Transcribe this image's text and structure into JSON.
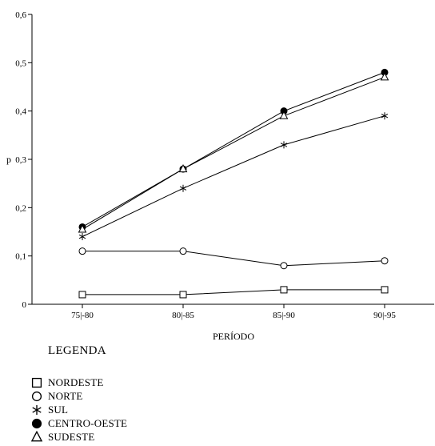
{
  "chart_data": {
    "type": "line",
    "categories": [
      "75|-80",
      "80|-85",
      "85|-90",
      "90|-95"
    ],
    "ylim": [
      0,
      0.6
    ],
    "yticks": [
      0,
      0.1,
      0.2,
      0.3,
      0.4,
      0.5,
      0.6
    ],
    "ytick_labels": [
      "0",
      "0,1",
      "0,2",
      "0,3",
      "0,4",
      "0,5",
      "0,6"
    ],
    "xlabel": "PERÍODO",
    "ylabel": "p",
    "grid": false,
    "series": [
      {
        "name": "NORDESTE",
        "marker": "square-open",
        "values": [
          0.02,
          0.02,
          0.03,
          0.03
        ]
      },
      {
        "name": "NORTE",
        "marker": "circle-open",
        "values": [
          0.11,
          0.11,
          0.08,
          0.09
        ]
      },
      {
        "name": "SUL",
        "marker": "asterisk",
        "values": [
          0.14,
          0.24,
          0.33,
          0.39
        ]
      },
      {
        "name": "CENTRO-OESTE",
        "marker": "circle-filled",
        "values": [
          0.16,
          0.28,
          0.4,
          0.48
        ]
      },
      {
        "name": "SUDESTE",
        "marker": "triangle-open",
        "values": [
          0.155,
          0.28,
          0.39,
          0.47
        ]
      }
    ]
  },
  "legend": {
    "title": "LEGENDA",
    "items": [
      {
        "label": "NORDESTE",
        "marker": "square-open"
      },
      {
        "label": "NORTE",
        "marker": "circle-open"
      },
      {
        "label": "SUL",
        "marker": "asterisk"
      },
      {
        "label": "CENTRO-OESTE",
        "marker": "circle-filled"
      },
      {
        "label": "SUDESTE",
        "marker": "triangle-open"
      }
    ]
  }
}
